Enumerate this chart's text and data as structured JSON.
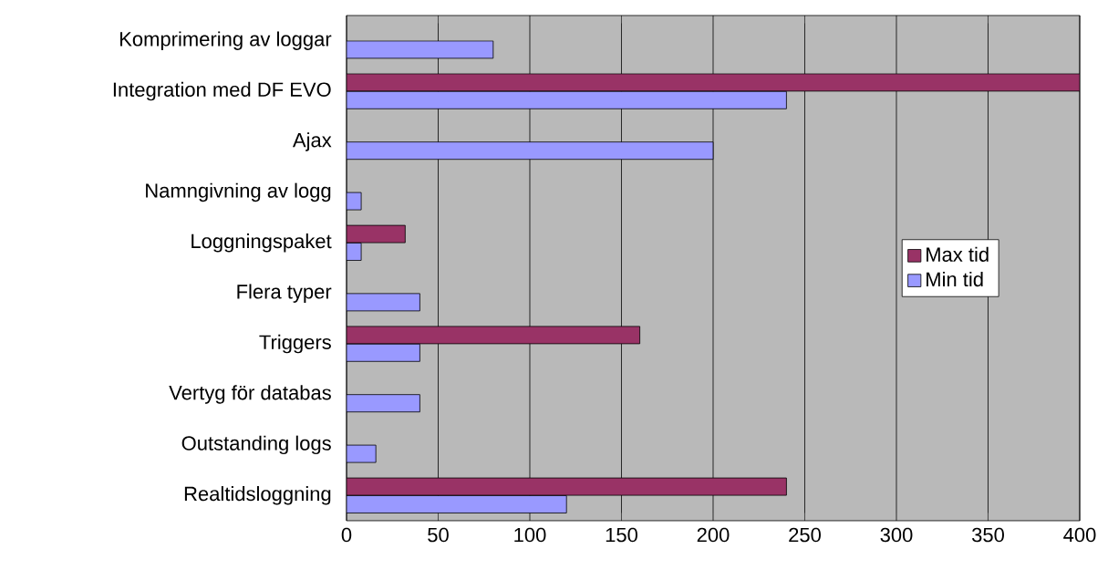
{
  "chart_data": {
    "type": "bar",
    "orientation": "horizontal",
    "categories": [
      "Komprimering av loggar",
      "Integration med DF EVO",
      "Ajax",
      "Namngivning av logg",
      "Loggningspaket",
      "Flera typer",
      "Triggers",
      "Vertyg för databas",
      "Outstanding logs",
      "Realtidsloggning"
    ],
    "series": [
      {
        "name": "Max tid",
        "color": "#993366",
        "values": [
          null,
          400,
          null,
          null,
          32,
          null,
          160,
          null,
          null,
          240
        ]
      },
      {
        "name": "Min tid",
        "color": "#9999ff",
        "values": [
          80,
          240,
          200,
          8,
          8,
          40,
          40,
          40,
          16,
          120
        ]
      }
    ],
    "xlim": [
      0,
      400
    ],
    "xticks": [
      0,
      50,
      100,
      150,
      200,
      250,
      300,
      350,
      400
    ],
    "grid": "x",
    "legend": "right"
  }
}
